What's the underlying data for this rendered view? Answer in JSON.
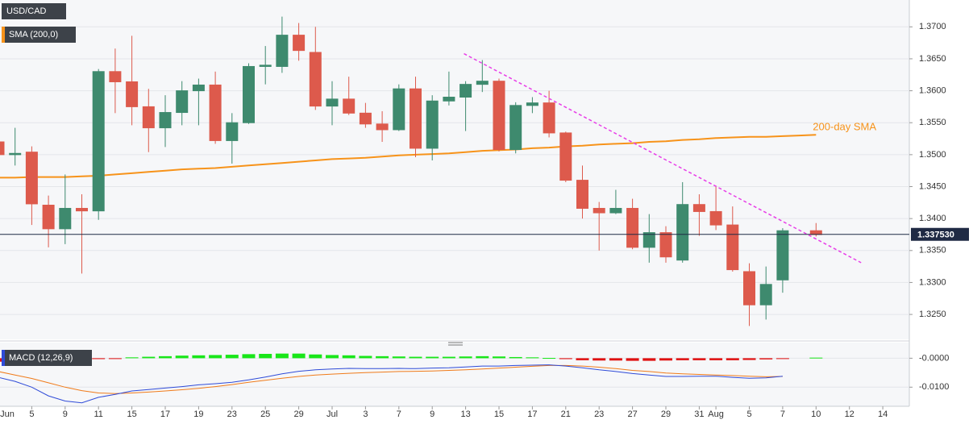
{
  "chart_data": [
    {
      "type": "candlestick",
      "title": "USD/CAD",
      "categories": [
        "Jun",
        null,
        "5",
        null,
        "9",
        null,
        "11",
        null,
        "15",
        null,
        "17",
        null,
        "19",
        null,
        "23",
        null,
        "25",
        null,
        "29",
        null,
        "Jul",
        null,
        "3",
        null,
        "7",
        null,
        "9",
        null,
        "13",
        null,
        "15",
        null,
        "17",
        null,
        "21",
        null,
        "23",
        null,
        "27",
        null,
        "29",
        null,
        "31",
        "Aug",
        null,
        "5",
        null,
        "7",
        null,
        "10",
        null,
        "12",
        null,
        "14",
        null
      ],
      "open": [
        1.352,
        1.35,
        1.3504,
        1.3421,
        1.3384,
        1.3416,
        1.3412,
        1.363,
        1.3614,
        1.3575,
        1.3542,
        1.3566,
        1.36,
        1.3609,
        1.3522,
        1.355,
        1.3638,
        1.3638,
        1.3687,
        1.366,
        1.3576,
        1.3587,
        1.3565,
        1.3548,
        1.3539,
        1.3603,
        1.351,
        1.3584,
        1.359,
        1.361,
        1.3615,
        1.3508,
        1.3577,
        1.3581,
        1.3534,
        1.346,
        1.3416,
        1.3409,
        1.3416,
        1.3355,
        1.3378,
        1.3335,
        1.3422,
        1.3411,
        1.339,
        1.3317,
        1.3265,
        1.3304,
        null,
        1.3381,
        null,
        null,
        null,
        null,
        null
      ],
      "high": [
        1.3545,
        1.3542,
        1.3513,
        1.3436,
        1.3469,
        1.3438,
        1.3634,
        1.3666,
        1.3686,
        1.3603,
        1.3593,
        1.3615,
        1.3619,
        1.363,
        1.3565,
        1.3643,
        1.367,
        1.3716,
        1.3706,
        1.37,
        1.3615,
        1.3622,
        1.3581,
        1.3568,
        1.361,
        1.3622,
        1.3593,
        1.363,
        1.3615,
        1.3648,
        1.3619,
        1.3582,
        1.359,
        1.36,
        1.3536,
        1.3483,
        1.3426,
        1.3445,
        1.3431,
        1.3407,
        1.3388,
        1.3457,
        1.3438,
        1.3451,
        1.3419,
        1.333,
        1.3325,
        1.3385,
        null,
        1.3393,
        null,
        null,
        null,
        null,
        null
      ],
      "low": [
        1.349,
        1.3483,
        1.339,
        1.3355,
        1.336,
        1.3314,
        1.3398,
        1.3565,
        1.3546,
        1.3504,
        1.3512,
        1.3546,
        1.3546,
        1.3517,
        1.3486,
        1.3548,
        1.361,
        1.3628,
        1.3647,
        1.357,
        1.3546,
        1.3562,
        1.3542,
        1.352,
        1.3537,
        1.3496,
        1.3491,
        1.3577,
        1.3537,
        1.3598,
        1.3505,
        1.3502,
        1.3565,
        1.3527,
        1.3457,
        1.34,
        1.335,
        1.3407,
        1.3352,
        1.3331,
        1.3331,
        1.3331,
        1.3373,
        1.3382,
        1.3317,
        1.3232,
        1.3242,
        1.3284,
        null,
        1.3372,
        null,
        null,
        null,
        null,
        null
      ],
      "close": [
        1.35,
        1.3502,
        1.3423,
        1.3384,
        1.3416,
        1.3412,
        1.363,
        1.3614,
        1.3575,
        1.3542,
        1.3566,
        1.36,
        1.3609,
        1.3522,
        1.355,
        1.3638,
        1.364,
        1.3687,
        1.3663,
        1.3576,
        1.3587,
        1.3565,
        1.3548,
        1.3539,
        1.3603,
        1.351,
        1.3584,
        1.359,
        1.361,
        1.3615,
        1.3508,
        1.3577,
        1.3581,
        1.3534,
        1.346,
        1.3416,
        1.3409,
        1.3416,
        1.3355,
        1.3378,
        1.334,
        1.3422,
        1.3411,
        1.339,
        1.332,
        1.3265,
        1.3297,
        1.3381,
        null,
        1.3375,
        null,
        null,
        null,
        null,
        null
      ],
      "up_color": "#3e8a6e",
      "down_color": "#dd5a4c",
      "series": [
        {
          "name": "SMA (200,0)",
          "color": "#f7931a",
          "values": [
            1.3464,
            1.3464,
            1.3465,
            1.3465,
            1.3465,
            1.3466,
            1.3467,
            1.3469,
            1.3471,
            1.3473,
            1.3475,
            1.3477,
            1.3478,
            1.3479,
            1.3481,
            1.3483,
            1.3485,
            1.3487,
            1.3489,
            1.3491,
            1.3493,
            1.3494,
            1.3495,
            1.3497,
            1.3499,
            1.35,
            1.3501,
            1.3502,
            1.3504,
            1.3506,
            1.3507,
            1.3508,
            1.351,
            1.3511,
            1.3513,
            1.3514,
            1.3516,
            1.3517,
            1.3518,
            1.352,
            1.3521,
            1.3523,
            1.3524,
            1.3526,
            1.3527,
            1.3528,
            1.3528,
            1.3529,
            1.353,
            1.3531,
            null,
            null,
            null,
            null,
            null
          ]
        }
      ],
      "annotations": [
        {
          "text": "200-day SMA",
          "color": "#f7931a"
        }
      ],
      "trendline": {
        "color": "#e83ee8",
        "x": [
          27.9,
          51.7
        ],
        "y": [
          1.3658,
          1.3331
        ]
      },
      "last_price": {
        "value": 1.33753,
        "label": "1.337530"
      },
      "ylim": [
        1.3211,
        1.3742
      ],
      "yticks": [
        {
          "value": 1.325,
          "label": "1.3250"
        },
        {
          "value": 1.33,
          "label": "1.3300"
        },
        {
          "value": 1.335,
          "label": "1.3350"
        },
        {
          "value": 1.34,
          "label": "1.3400"
        },
        {
          "value": 1.345,
          "label": "1.3450"
        },
        {
          "value": 1.35,
          "label": "1.3500"
        },
        {
          "value": 1.355,
          "label": "1.3550"
        },
        {
          "value": 1.36,
          "label": "1.3600"
        },
        {
          "value": 1.365,
          "label": "1.3650"
        },
        {
          "value": 1.37,
          "label": "1.3700"
        }
      ],
      "grid": true
    },
    {
      "type": "macd",
      "title": "MACD (12,26,9)",
      "macd": {
        "color": "#2f4bd8",
        "values": [
          -0.0066,
          -0.008,
          -0.01,
          -0.013,
          -0.0148,
          -0.0154,
          -0.0135,
          -0.0125,
          -0.0113,
          -0.0108,
          -0.0103,
          -0.0098,
          -0.0092,
          -0.0088,
          -0.0083,
          -0.0075,
          -0.0065,
          -0.0054,
          -0.0045,
          -0.004,
          -0.0037,
          -0.0035,
          -0.0036,
          -0.0036,
          -0.0035,
          -0.0036,
          -0.0034,
          -0.0033,
          -0.003,
          -0.0027,
          -0.0027,
          -0.0025,
          -0.0024,
          -0.0023,
          -0.0027,
          -0.0033,
          -0.004,
          -0.0046,
          -0.0053,
          -0.0058,
          -0.0063,
          -0.0063,
          -0.0062,
          -0.0062,
          -0.0066,
          -0.0069,
          -0.0068,
          -0.0062,
          null,
          -0.0054,
          null,
          null,
          null,
          null,
          null
        ]
      },
      "signal": {
        "color": "#f07b1a",
        "values": [
          -0.0046,
          -0.0058,
          -0.007,
          -0.0085,
          -0.01,
          -0.0112,
          -0.012,
          -0.0122,
          -0.012,
          -0.0117,
          -0.0113,
          -0.0109,
          -0.0104,
          -0.0098,
          -0.0091,
          -0.0083,
          -0.0076,
          -0.0069,
          -0.0063,
          -0.0058,
          -0.0055,
          -0.0052,
          -0.005,
          -0.0048,
          -0.0046,
          -0.0045,
          -0.0044,
          -0.0042,
          -0.004,
          -0.0037,
          -0.0034,
          -0.0031,
          -0.0028,
          -0.0025,
          -0.0025,
          -0.0027,
          -0.0031,
          -0.0036,
          -0.0042,
          -0.0046,
          -0.0051,
          -0.0054,
          -0.0056,
          -0.0058,
          -0.006,
          -0.0062,
          -0.0064,
          -0.0063,
          null,
          -0.006,
          null,
          null,
          null,
          null,
          null
        ]
      },
      "histogram": {
        "up_color": "#19e619",
        "down_color": "#e01010",
        "values": [
          -0.0012,
          -0.0012,
          -0.001,
          -0.001,
          -0.0008,
          -0.0005,
          -0.0003,
          -0.0002,
          0.0003,
          0.0005,
          0.0007,
          0.0009,
          0.001,
          0.0011,
          0.0012,
          0.0014,
          0.0015,
          0.0016,
          0.0016,
          0.0013,
          0.0011,
          0.001,
          0.0008,
          0.0007,
          0.0006,
          0.0005,
          0.0005,
          0.0005,
          0.0006,
          0.0007,
          0.0006,
          0.0004,
          0.0003,
          0.0001,
          -0.0003,
          -0.0007,
          -0.0008,
          -0.0008,
          -0.0009,
          -0.0009,
          -0.0008,
          -0.0007,
          -0.0007,
          -0.0007,
          -0.0007,
          -0.0006,
          -0.0004,
          -0.0001,
          null,
          0.0002,
          null,
          null,
          null,
          null,
          null
        ]
      },
      "ylim": [
        -0.0166,
        0.0054
      ],
      "yticks": [
        {
          "value": -0.01,
          "label": "-0.0100"
        },
        {
          "value": 0,
          "label": "-0.0000"
        }
      ]
    }
  ]
}
